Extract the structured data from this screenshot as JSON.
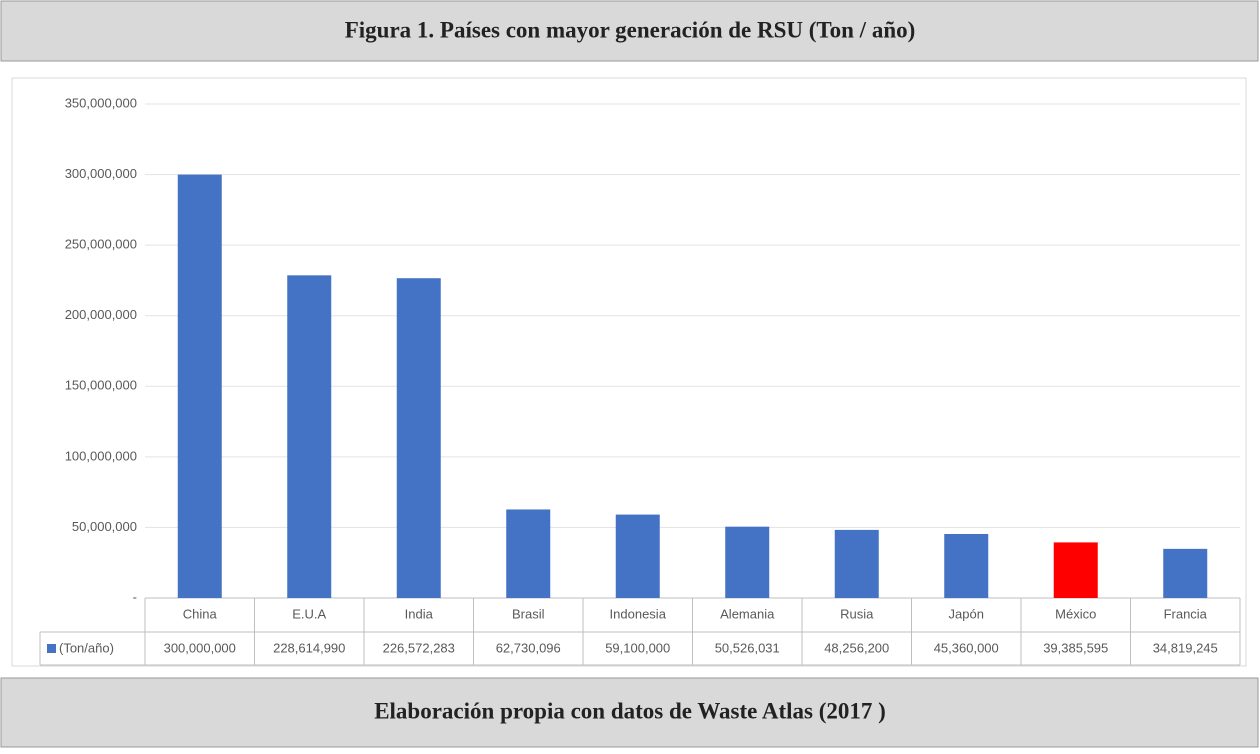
{
  "chart_data": {
    "type": "bar",
    "title": "Figura 1. Países con mayor generación de RSU (Ton / año)",
    "footer": "Elaboración propia con datos de Waste Atlas (2017 )",
    "categories": [
      "China",
      "E.U.A",
      "India",
      "Brasil",
      "Indonesia",
      "Alemania",
      "Rusia",
      "Japón",
      "México",
      "Francia"
    ],
    "series": [
      {
        "name": "(Ton/año)",
        "color": "#4472c4",
        "colors": [
          "#4472c4",
          "#4472c4",
          "#4472c4",
          "#4472c4",
          "#4472c4",
          "#4472c4",
          "#4472c4",
          "#4472c4",
          "#ff0000",
          "#4472c4"
        ],
        "values": [
          300000000,
          228614990,
          226572283,
          62730096,
          59100000,
          50526031,
          48256200,
          45360000,
          39385595,
          34819245
        ],
        "value_labels": [
          "300,000,000",
          "228,614,990",
          "226,572,283",
          "62,730,096",
          "59,100,000",
          "50,526,031",
          "48,256,200",
          "45,360,000",
          "39,385,595",
          "34,819,245"
        ]
      }
    ],
    "ylim": [
      0,
      350000000
    ],
    "yticks": [
      {
        "value": 0,
        "label": "-"
      },
      {
        "value": 50000000,
        "label": "50,000,000"
      },
      {
        "value": 100000000,
        "label": "100,000,000"
      },
      {
        "value": 150000000,
        "label": "150,000,000"
      },
      {
        "value": 200000000,
        "label": "200,000,000"
      },
      {
        "value": 250000000,
        "label": "250,000,000"
      },
      {
        "value": 300000000,
        "label": "300,000,000"
      },
      {
        "value": 350000000,
        "label": "350,000,000"
      }
    ],
    "grid": true
  }
}
